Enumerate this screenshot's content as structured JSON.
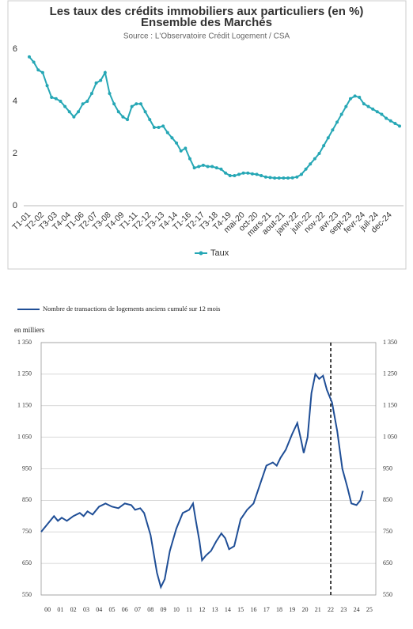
{
  "chart_data": [
    {
      "type": "line",
      "title": "Les taux des crédits immobiliers aux particuliers (en %)",
      "subtitle": "Ensemble des Marchés",
      "source": "Source : L'Observatoire Crédit Logement / CSA",
      "categories": [
        "T1-01",
        null,
        null,
        "T2-02",
        null,
        null,
        "T3-03",
        null,
        null,
        "T4-04",
        null,
        null,
        "T1-06",
        null,
        null,
        "T2-07",
        null,
        null,
        "T3-08",
        null,
        null,
        "T4-09",
        null,
        null,
        "T1-11",
        null,
        null,
        "T2-12",
        null,
        null,
        "T3-13",
        null,
        null,
        "T4-14",
        null,
        null,
        "T1-16",
        null,
        null,
        "T2-17",
        null,
        null,
        "T3-18",
        null,
        null,
        "T4-19",
        null,
        null,
        "mai-20",
        null,
        null,
        "oct-20",
        null,
        null,
        "mars-21",
        null,
        null,
        "aout-21",
        null,
        null,
        "janv-22",
        null,
        null,
        "juin-22",
        null,
        null,
        "nov-22",
        null,
        null,
        "avr-23",
        null,
        null,
        "sept-23",
        null,
        null,
        "fevr-24",
        null,
        null,
        "juil-24",
        null,
        null,
        "dec-24",
        null,
        null
      ],
      "series": [
        {
          "name": "Taux",
          "color": "#26a7b5",
          "values": [
            5.7,
            5.5,
            5.2,
            5.1,
            4.6,
            4.15,
            4.1,
            4.0,
            3.8,
            3.6,
            3.4,
            3.6,
            3.9,
            4.0,
            4.3,
            4.7,
            4.8,
            5.1,
            4.3,
            3.9,
            3.6,
            3.4,
            3.3,
            3.8,
            3.9,
            3.9,
            3.6,
            3.3,
            3.0,
            3.0,
            3.05,
            2.8,
            2.6,
            2.4,
            2.1,
            2.2,
            1.8,
            1.45,
            1.5,
            1.55,
            1.5,
            1.5,
            1.45,
            1.4,
            1.25,
            1.15,
            1.15,
            1.2,
            1.25,
            1.25,
            1.22,
            1.2,
            1.15,
            1.1,
            1.08,
            1.06,
            1.06,
            1.06,
            1.06,
            1.07,
            1.1,
            1.2,
            1.4,
            1.6,
            1.8,
            2.0,
            2.3,
            2.6,
            2.9,
            3.2,
            3.5,
            3.8,
            4.1,
            4.2,
            4.15,
            3.9,
            3.8,
            3.7,
            3.6,
            3.5,
            3.35,
            3.25,
            3.15,
            3.05
          ]
        }
      ],
      "ylim": [
        0,
        6
      ],
      "yticks": [
        0,
        2,
        4,
        6
      ],
      "grid": false,
      "legend": "bottom"
    },
    {
      "type": "line",
      "y_label": "en milliers",
      "x": [
        2000.0,
        2000.5,
        2001.0,
        2001.3,
        2001.6,
        2002.0,
        2002.5,
        2003.0,
        2003.3,
        2003.6,
        2004.0,
        2004.5,
        2005.0,
        2005.5,
        2006.0,
        2006.5,
        2007.0,
        2007.3,
        2007.7,
        2008.0,
        2008.5,
        2009.0,
        2009.3,
        2009.6,
        2010.0,
        2010.5,
        2011.0,
        2011.5,
        2011.8,
        2012.0,
        2012.3,
        2012.5,
        2012.8,
        2013.2,
        2013.6,
        2014.0,
        2014.3,
        2014.6,
        2015.0,
        2015.5,
        2016.0,
        2016.5,
        2017.0,
        2017.5,
        2018.0,
        2018.3,
        2018.6,
        2019.0,
        2019.5,
        2019.9,
        2020.2,
        2020.4,
        2020.7,
        2021.0,
        2021.3,
        2021.6,
        2021.9,
        2022.2,
        2022.6,
        2023.0,
        2023.4,
        2023.8,
        2024.1,
        2024.5,
        2024.8,
        2025.0
      ],
      "series": [
        {
          "name": "Nombre de transactions de logements anciens cumulé sur 12 mois",
          "color": "#1f4e96",
          "values": [
            750,
            775,
            800,
            785,
            795,
            785,
            800,
            810,
            800,
            815,
            805,
            830,
            840,
            830,
            825,
            840,
            835,
            820,
            825,
            810,
            740,
            620,
            575,
            600,
            690,
            760,
            810,
            820,
            840,
            790,
            720,
            660,
            675,
            690,
            720,
            745,
            730,
            695,
            705,
            790,
            820,
            840,
            900,
            960,
            970,
            960,
            985,
            1010,
            1060,
            1095,
            1040,
            1000,
            1050,
            1190,
            1250,
            1235,
            1245,
            1200,
            1160,
            1070,
            950,
            890,
            840,
            835,
            850,
            880
          ]
        }
      ],
      "xlim": [
        2000,
        2026
      ],
      "xticks": [
        {
          "value": 2000.5,
          "label": "00"
        },
        {
          "value": 2001.5,
          "label": "01"
        },
        {
          "value": 2002.5,
          "label": "02"
        },
        {
          "value": 2003.5,
          "label": "03"
        },
        {
          "value": 2004.5,
          "label": "04"
        },
        {
          "value": 2005.5,
          "label": "05"
        },
        {
          "value": 2006.5,
          "label": "06"
        },
        {
          "value": 2007.5,
          "label": "07"
        },
        {
          "value": 2008.5,
          "label": "08"
        },
        {
          "value": 2009.5,
          "label": "09"
        },
        {
          "value": 2010.5,
          "label": "10"
        },
        {
          "value": 2011.5,
          "label": "11"
        },
        {
          "value": 2012.5,
          "label": "12"
        },
        {
          "value": 2013.5,
          "label": "13"
        },
        {
          "value": 2014.5,
          "label": "14"
        },
        {
          "value": 2015.5,
          "label": "15"
        },
        {
          "value": 2016.5,
          "label": "16"
        },
        {
          "value": 2017.5,
          "label": "17"
        },
        {
          "value": 2018.5,
          "label": "18"
        },
        {
          "value": 2019.5,
          "label": "19"
        },
        {
          "value": 2020.5,
          "label": "20"
        },
        {
          "value": 2021.5,
          "label": "21"
        },
        {
          "value": 2022.5,
          "label": "22"
        },
        {
          "value": 2023.5,
          "label": "23"
        },
        {
          "value": 2024.5,
          "label": "24"
        },
        {
          "value": 2025.5,
          "label": "25"
        }
      ],
      "ylim": [
        550,
        1350
      ],
      "yticks": [
        550,
        650,
        750,
        850,
        950,
        {
          "value": 1050,
          "label": "1 050"
        },
        {
          "value": 1150,
          "label": "1 150"
        },
        {
          "value": 1250,
          "label": "1 250"
        },
        {
          "value": 1350,
          "label": "1 350"
        }
      ],
      "y2lim": [
        550,
        1350
      ],
      "y2ticks": [
        550,
        650,
        750,
        850,
        950,
        {
          "value": 1050,
          "label": "1 050"
        },
        {
          "value": 1150,
          "label": "1 150"
        },
        {
          "value": 1250,
          "label": "1 250"
        },
        {
          "value": 1350,
          "label": "1 350"
        }
      ],
      "marker_x": 2022.5,
      "grid": true,
      "legend": "top-left"
    }
  ]
}
